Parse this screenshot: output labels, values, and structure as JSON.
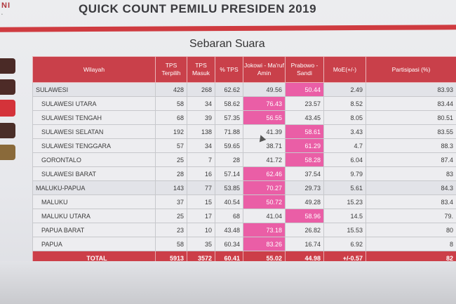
{
  "logo": {
    "text": "NI"
  },
  "title": "QUICK COUNT PEMILU PRESIDEN 2019",
  "subtitle": "Sebaran Suara",
  "headers": {
    "wilayah": "Wilayah",
    "tps_terpilih": "TPS Terpilih",
    "tps_masuk": "TPS Masuk",
    "pct_tps": "% TPS",
    "jokowi": "Jokowi - Ma'ruf Amin",
    "prabowo": "Prabowo - Sandi",
    "moe": "MoE(+/-)",
    "partisipasi": "Partisipasi (%)"
  },
  "rows": [
    {
      "wilayah": "SULAWESI",
      "tps_terpilih": "428",
      "tps_masuk": "268",
      "pct_tps": "62.62",
      "jokowi": "49.56",
      "prabowo": "50.44",
      "moe": "2.49",
      "partisipasi": "83.93",
      "winner": "prabowo"
    },
    {
      "wilayah": "SULAWESI UTARA",
      "tps_terpilih": "58",
      "tps_masuk": "34",
      "pct_tps": "58.62",
      "jokowi": "76.43",
      "prabowo": "23.57",
      "moe": "8.52",
      "partisipasi": "83.44",
      "winner": "jokowi"
    },
    {
      "wilayah": "SULAWESI TENGAH",
      "tps_terpilih": "68",
      "tps_masuk": "39",
      "pct_tps": "57.35",
      "jokowi": "56.55",
      "prabowo": "43.45",
      "moe": "8.05",
      "partisipasi": "80.51",
      "winner": "jokowi"
    },
    {
      "wilayah": "SULAWESI SELATAN",
      "tps_terpilih": "192",
      "tps_masuk": "138",
      "pct_tps": "71.88",
      "jokowi": "41.39",
      "prabowo": "58.61",
      "moe": "3.43",
      "partisipasi": "83.55",
      "winner": "prabowo"
    },
    {
      "wilayah": "SULAWESI TENGGARA",
      "tps_terpilih": "57",
      "tps_masuk": "34",
      "pct_tps": "59.65",
      "jokowi": "38.71",
      "prabowo": "61.29",
      "moe": "4.7",
      "partisipasi": "88.3",
      "winner": "prabowo"
    },
    {
      "wilayah": "GORONTALO",
      "tps_terpilih": "25",
      "tps_masuk": "7",
      "pct_tps": "28",
      "jokowi": "41.72",
      "prabowo": "58.28",
      "moe": "6.04",
      "partisipasi": "87.4",
      "winner": "prabowo"
    },
    {
      "wilayah": "SULAWESI BARAT",
      "tps_terpilih": "28",
      "tps_masuk": "16",
      "pct_tps": "57.14",
      "jokowi": "62.46",
      "prabowo": "37.54",
      "moe": "9.79",
      "partisipasi": "83",
      "winner": "jokowi"
    },
    {
      "wilayah": "MALUKU-PAPUA",
      "tps_terpilih": "143",
      "tps_masuk": "77",
      "pct_tps": "53.85",
      "jokowi": "70.27",
      "prabowo": "29.73",
      "moe": "5.61",
      "partisipasi": "84.3",
      "winner": "jokowi"
    },
    {
      "wilayah": "MALUKU",
      "tps_terpilih": "37",
      "tps_masuk": "15",
      "pct_tps": "40.54",
      "jokowi": "50.72",
      "prabowo": "49.28",
      "moe": "15.23",
      "partisipasi": "83.4",
      "winner": "jokowi"
    },
    {
      "wilayah": "MALUKU UTARA",
      "tps_terpilih": "25",
      "tps_masuk": "17",
      "pct_tps": "68",
      "jokowi": "41.04",
      "prabowo": "58.96",
      "moe": "14.5",
      "partisipasi": "79.",
      "winner": "prabowo"
    },
    {
      "wilayah": "PAPUA BARAT",
      "tps_terpilih": "23",
      "tps_masuk": "10",
      "pct_tps": "43.48",
      "jokowi": "73.18",
      "prabowo": "26.82",
      "moe": "15.53",
      "partisipasi": "80",
      "winner": "jokowi"
    },
    {
      "wilayah": "PAPUA",
      "tps_terpilih": "58",
      "tps_masuk": "35",
      "pct_tps": "60.34",
      "jokowi": "83.26",
      "prabowo": "16.74",
      "moe": "6.92",
      "partisipasi": "8",
      "winner": "jokowi"
    }
  ],
  "total": {
    "wilayah": "TOTAL",
    "tps_terpilih": "5913",
    "tps_masuk": "3572",
    "pct_tps": "60.41",
    "jokowi": "55.02",
    "prabowo": "44.98",
    "moe": "+/-0.57",
    "partisipasi": "82"
  },
  "colors": {
    "header_red": "#c9404a",
    "winner_pink": "#ea5ea6",
    "rule_red": "#cf3b40"
  }
}
